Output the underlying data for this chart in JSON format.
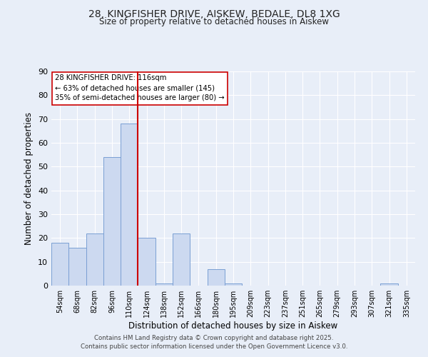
{
  "title_line1": "28, KINGFISHER DRIVE, AISKEW, BEDALE, DL8 1XG",
  "title_line2": "Size of property relative to detached houses in Aiskew",
  "xlabel": "Distribution of detached houses by size in Aiskew",
  "ylabel": "Number of detached properties",
  "categories": [
    "54sqm",
    "68sqm",
    "82sqm",
    "96sqm",
    "110sqm",
    "124sqm",
    "138sqm",
    "152sqm",
    "166sqm",
    "180sqm",
    "195sqm",
    "209sqm",
    "223sqm",
    "237sqm",
    "251sqm",
    "265sqm",
    "279sqm",
    "293sqm",
    "307sqm",
    "321sqm",
    "335sqm"
  ],
  "values": [
    18,
    16,
    22,
    54,
    68,
    20,
    1,
    22,
    0,
    7,
    1,
    0,
    0,
    0,
    0,
    0,
    0,
    0,
    0,
    1,
    0
  ],
  "bar_color": "#ccd9f0",
  "bar_edge_color": "#7a9fd4",
  "background_color": "#e8eef8",
  "grid_color": "#ffffff",
  "vline_x": 4.5,
  "vline_color": "#cc0000",
  "annotation_title": "28 KINGFISHER DRIVE: 116sqm",
  "annotation_line1": "← 63% of detached houses are smaller (145)",
  "annotation_line2": "35% of semi-detached houses are larger (80) →",
  "annotation_box_color": "#ffffff",
  "annotation_border_color": "#cc0000",
  "ylim": [
    0,
    90
  ],
  "yticks": [
    0,
    10,
    20,
    30,
    40,
    50,
    60,
    70,
    80,
    90
  ],
  "footer_line1": "Contains HM Land Registry data © Crown copyright and database right 2025.",
  "footer_line2": "Contains public sector information licensed under the Open Government Licence v3.0."
}
